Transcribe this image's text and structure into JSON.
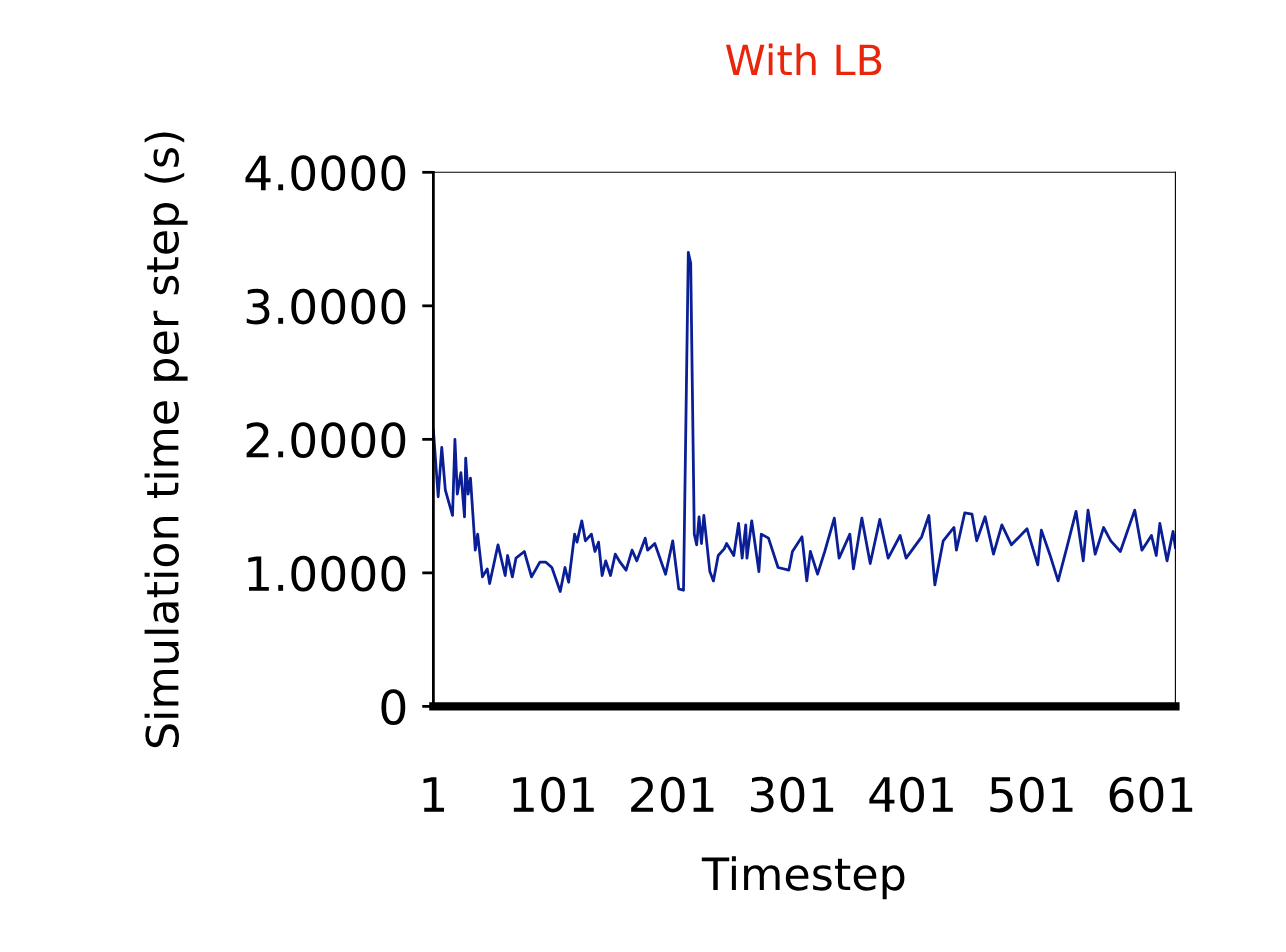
{
  "chart_data": {
    "type": "line",
    "title": "With LB",
    "xlabel": "Timestep",
    "ylabel": "Simulation time per step (s)",
    "x": [
      1,
      5,
      8,
      11,
      17,
      19,
      21,
      24,
      27,
      28,
      30,
      32,
      36,
      38,
      42,
      46,
      48,
      55,
      61,
      63,
      67,
      70,
      77,
      83,
      90,
      95,
      100,
      107,
      111,
      114,
      119,
      121,
      125,
      128,
      133,
      136,
      139,
      142,
      145,
      149,
      153,
      157,
      162,
      167,
      171,
      178,
      180,
      186,
      195,
      201,
      206,
      210,
      214,
      216,
      219,
      221,
      223,
      225,
      227,
      232,
      235,
      239,
      244,
      246,
      252,
      256,
      259,
      262,
      263,
      267,
      273,
      275,
      281,
      289,
      298,
      301,
      309,
      313,
      316,
      322,
      328,
      336,
      340,
      349,
      352,
      359,
      366,
      374,
      381,
      391,
      396,
      409,
      415,
      420,
      427,
      436,
      438,
      445,
      451,
      455,
      462,
      469,
      476,
      484,
      497,
      506,
      509,
      516,
      523,
      530,
      538,
      544,
      548,
      554,
      561,
      567,
      575,
      587,
      593,
      601,
      605,
      608,
      614,
      619,
      621
    ],
    "series": [
      {
        "color": "#0a1e96",
        "values": [
          2.07,
          1.57,
          1.94,
          1.62,
          1.43,
          2.0,
          1.59,
          1.75,
          1.42,
          1.86,
          1.59,
          1.71,
          1.17,
          1.29,
          0.97,
          1.03,
          0.92,
          1.21,
          0.98,
          1.13,
          0.97,
          1.11,
          1.16,
          0.97,
          1.08,
          1.08,
          1.04,
          0.86,
          1.04,
          0.93,
          1.29,
          1.23,
          1.39,
          1.24,
          1.29,
          1.16,
          1.23,
          0.98,
          1.09,
          0.98,
          1.14,
          1.08,
          1.02,
          1.17,
          1.09,
          1.26,
          1.17,
          1.22,
          0.99,
          1.24,
          0.88,
          0.87,
          3.4,
          3.32,
          1.29,
          1.21,
          1.42,
          1.22,
          1.43,
          1.01,
          0.94,
          1.13,
          1.18,
          1.22,
          1.13,
          1.37,
          1.11,
          1.36,
          1.11,
          1.39,
          1.01,
          1.29,
          1.26,
          1.04,
          1.02,
          1.16,
          1.27,
          0.94,
          1.16,
          0.99,
          1.16,
          1.41,
          1.11,
          1.29,
          1.03,
          1.41,
          1.07,
          1.4,
          1.11,
          1.28,
          1.11,
          1.27,
          1.43,
          0.91,
          1.24,
          1.34,
          1.17,
          1.45,
          1.44,
          1.24,
          1.42,
          1.14,
          1.36,
          1.21,
          1.33,
          1.06,
          1.32,
          1.14,
          0.94,
          1.18,
          1.46,
          1.09,
          1.47,
          1.14,
          1.34,
          1.24,
          1.16,
          1.47,
          1.17,
          1.28,
          1.13,
          1.37,
          1.09,
          1.31,
          1.19
        ]
      }
    ],
    "xlim": [
      1,
      621
    ],
    "xticks": [
      1,
      101,
      201,
      301,
      401,
      501,
      601
    ],
    "ylim": [
      0,
      4
    ],
    "yticks": [
      {
        "value": 0,
        "label": "0"
      },
      {
        "value": 1,
        "label": "1.0000"
      },
      {
        "value": 2,
        "label": "2.0000"
      },
      {
        "value": 3,
        "label": "3.0000"
      },
      {
        "value": 4,
        "label": "4.0000"
      }
    ],
    "grid": false,
    "marker": "none",
    "line_style": "solid"
  }
}
